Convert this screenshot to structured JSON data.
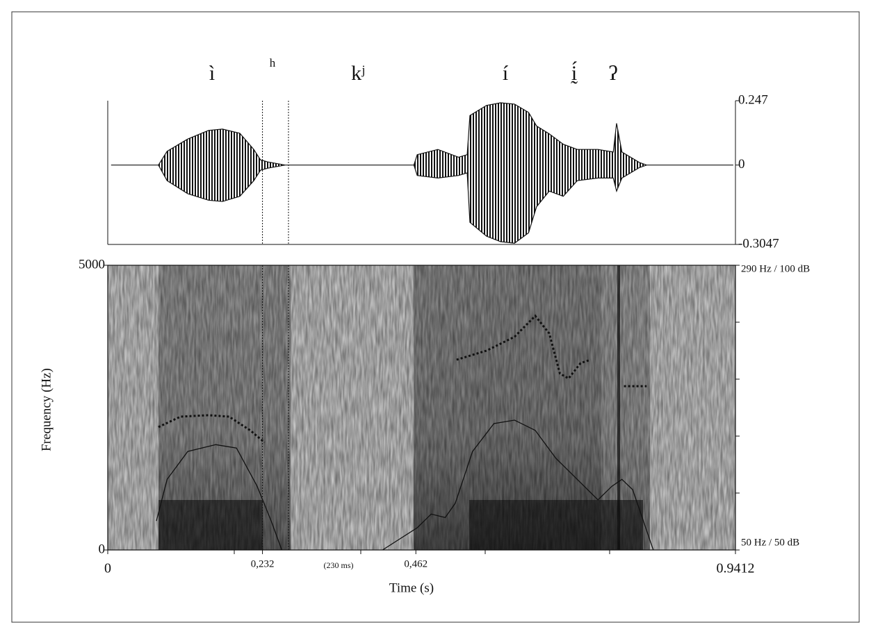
{
  "chart_data": [
    {
      "type": "waveform",
      "segments": [
        "ì",
        "h",
        "kʲ",
        "í",
        "ḭ́",
        "ʔ"
      ],
      "xlim": [
        0,
        0.9412
      ],
      "ylim": [
        -0.3047,
        0.247
      ],
      "yticks": [
        -0.3047,
        0,
        0.247
      ],
      "boundaries": [
        0.232,
        0.271
      ],
      "x": [
        0.005,
        0.076,
        0.089,
        0.12,
        0.151,
        0.172,
        0.198,
        0.219,
        0.229,
        0.24,
        0.266,
        0.459,
        0.464,
        0.495,
        0.526,
        0.539,
        0.543,
        0.568,
        0.589,
        0.61,
        0.631,
        0.643,
        0.662,
        0.683,
        0.704,
        0.735,
        0.758,
        0.763,
        0.771,
        0.797,
        0.808,
        0.938
      ],
      "upper": [
        0,
        0,
        0.053,
        0.1,
        0.133,
        0.138,
        0.122,
        0.06,
        0.02,
        0.012,
        0,
        0,
        0.04,
        0.06,
        0.03,
        0.04,
        0.19,
        0.229,
        0.239,
        0.234,
        0.202,
        0.15,
        0.12,
        0.08,
        0.06,
        0.06,
        0.05,
        0.16,
        0.05,
        0.01,
        0,
        0
      ],
      "lower": [
        0,
        0,
        -0.06,
        -0.11,
        -0.135,
        -0.14,
        -0.12,
        -0.06,
        -0.02,
        -0.012,
        0,
        0,
        -0.04,
        -0.05,
        -0.04,
        -0.03,
        -0.22,
        -0.273,
        -0.294,
        -0.3,
        -0.26,
        -0.16,
        -0.1,
        -0.12,
        -0.06,
        -0.05,
        -0.05,
        -0.1,
        -0.05,
        -0.01,
        0,
        0
      ]
    },
    {
      "type": "spectrogram",
      "xlabel": "Time (s)",
      "ylabel": "Frequency (Hz)",
      "xlim": [
        0,
        0.9412
      ],
      "xticks": [
        0,
        {
          "value": 0.232,
          "label": "0,232"
        },
        {
          "value": 0.462,
          "label": "0,462"
        },
        0.9412
      ],
      "ylim": [
        0,
        5000
      ],
      "yticks": [
        0,
        5000
      ],
      "y2lim": [
        50,
        290
      ],
      "y2ticks": [
        {
          "value": 50,
          "label": "50 Hz / 50 dB"
        },
        {
          "value": 290,
          "label": "290 Hz / 100 dB"
        }
      ],
      "y3lim": [
        50,
        100
      ],
      "annotation": "(230 ms)",
      "boundaries": [
        0.232,
        0.271
      ],
      "pitch": {
        "x": [
          0.076,
          0.109,
          0.151,
          0.182,
          0.214,
          0.235,
          null,
          0.523,
          0.568,
          0.61,
          0.641,
          0.662,
          0.678,
          0.691,
          0.709,
          0.724,
          null,
          0.774,
          0.808
        ],
        "values": [
          153.6,
          162.4,
          163.6,
          162.4,
          150.7,
          140.7,
          null,
          210.4,
          218,
          229.7,
          247.3,
          232.6,
          198.7,
          194.6,
          207.5,
          210.4,
          null,
          188.1,
          188.1
        ]
      },
      "intensity": {
        "x": [
          0.073,
          0.089,
          0.12,
          0.162,
          0.193,
          0.224,
          0.245,
          0.261,
          null,
          0.412,
          0.464,
          0.485,
          0.506,
          0.521,
          0.547,
          0.579,
          0.61,
          0.641,
          0.672,
          0.704,
          0.735,
          0.756,
          0.771,
          0.787,
          0.818
        ],
        "values": [
          55.1,
          62.4,
          67.3,
          68.5,
          67.9,
          61.2,
          55.1,
          50,
          null,
          50,
          53.9,
          56.3,
          55.7,
          58.2,
          67.3,
          72.2,
          72.8,
          71.0,
          66.1,
          62.4,
          58.8,
          61.2,
          62.4,
          60.6,
          50
        ]
      }
    }
  ]
}
